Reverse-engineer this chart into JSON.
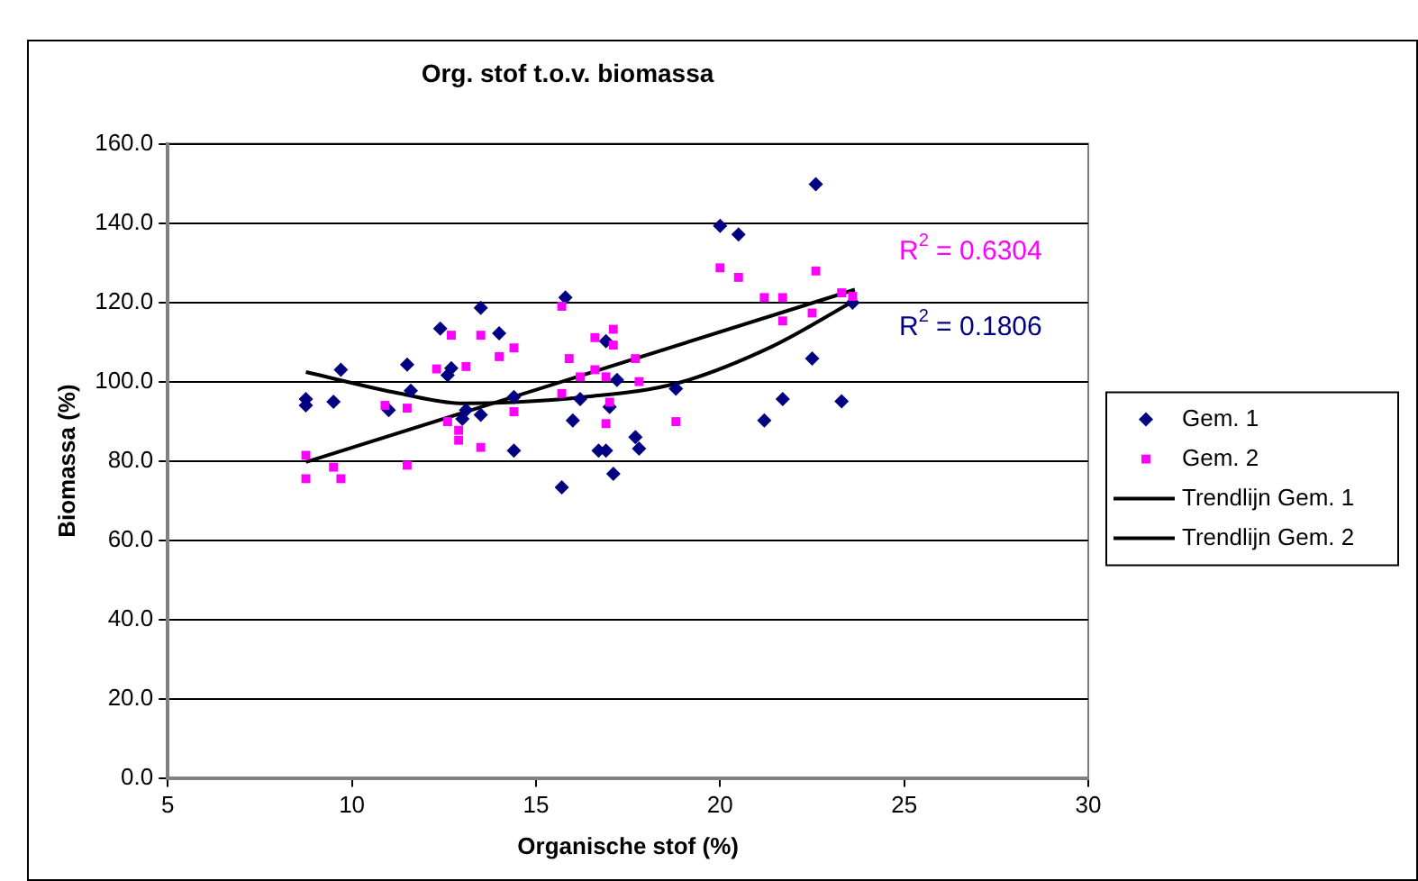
{
  "chart_data": {
    "type": "scatter",
    "title": "Org. stof t.o.v. biomassa",
    "xlabel": "Organische stof (%)",
    "ylabel": "Biomassa (%)",
    "xlim": [
      5,
      30
    ],
    "xticks": [
      5,
      10,
      15,
      20,
      25,
      30
    ],
    "ylim": [
      0,
      160
    ],
    "yticks": [
      {
        "value": 0,
        "label": "0.0"
      },
      {
        "value": 20,
        "label": "20.0"
      },
      {
        "value": 40,
        "label": "40.0"
      },
      {
        "value": 60,
        "label": "60.0"
      },
      {
        "value": 80,
        "label": "80.0"
      },
      {
        "value": 100,
        "label": "100.0"
      },
      {
        "value": 120,
        "label": "120.0"
      },
      {
        "value": 140,
        "label": "140.0"
      },
      {
        "value": 160,
        "label": "160.0"
      }
    ],
    "grid": "y",
    "legend": "right",
    "series": [
      {
        "name": "Gem. 1",
        "color": "#000080",
        "marker": "diamond",
        "x": [
          8.75,
          8.75,
          9.5,
          9.7,
          11.5,
          11.6,
          11.0,
          12.4,
          12.7,
          12.6,
          13.5,
          14.0,
          13.5,
          13.0,
          13.1,
          14.4,
          14.4,
          15.8,
          15.7,
          16.0,
          16.2,
          16.7,
          16.9,
          16.9,
          17.0,
          17.2,
          17.1,
          17.7,
          17.8,
          18.8,
          20.0,
          20.5,
          21.2,
          21.7,
          22.5,
          23.3,
          23.6,
          22.6
        ],
        "values": [
          95.6,
          94.0,
          94.9,
          103,
          104.3,
          97.7,
          92.8,
          113.4,
          103.4,
          101.6,
          118.6,
          112.2,
          91.6,
          90.6,
          92.8,
          96.1,
          82.6,
          121.2,
          73.3,
          90.2,
          95.6,
          82.6,
          82.6,
          110.2,
          93.6,
          100.4,
          76.7,
          86,
          83.1,
          98.2,
          139.3,
          137.1,
          90.2,
          95.6,
          105.8,
          95.0,
          119.9,
          149.8
        ]
      },
      {
        "name": "Gem. 2",
        "color": "#ff00ff",
        "marker": "square",
        "x": [
          8.75,
          8.75,
          9.5,
          9.7,
          11.5,
          10.9,
          11.5,
          12.3,
          12.7,
          13.1,
          13.5,
          14.0,
          14.4,
          14.4,
          12.6,
          12.9,
          12.9,
          13.5,
          15.7,
          15.9,
          16.2,
          15.7,
          16.6,
          16.6,
          16.9,
          17.1,
          17.1,
          17.0,
          16.9,
          17.7,
          17.8,
          18.8,
          20.0,
          20.5,
          21.2,
          21.7,
          21.7,
          22.5,
          22.6,
          23.3,
          23.6
        ],
        "values": [
          81.4,
          75.5,
          78.4,
          75.5,
          78.9,
          94.0,
          93.3,
          103.2,
          111.7,
          103.8,
          111.7,
          106.3,
          108.5,
          92.4,
          89.9,
          87.7,
          85.2,
          83.4,
          119.0,
          105.8,
          101.2,
          97.0,
          111.1,
          103.0,
          101.2,
          113.2,
          109.2,
          94.8,
          89.4,
          105.8,
          100.0,
          89.9,
          128.7,
          126.3,
          121.2,
          121.2,
          115.3,
          117.3,
          127.9,
          122.4,
          121.5
        ]
      },
      {
        "name": "Trendlijn Gem. 1",
        "type": "line",
        "color": "#000000",
        "marker": "none",
        "x": [
          8.75,
          11.3,
          13.0,
          14.4,
          16.3,
          18.8,
          21.4,
          23.7
        ],
        "values": [
          102.4,
          97.0,
          94.5,
          94.8,
          96.1,
          99.5,
          108.8,
          120.7
        ]
      },
      {
        "name": "Trendlijn Gem. 2",
        "type": "line",
        "color": "#000000",
        "marker": "none",
        "x": [
          8.75,
          23.66
        ],
        "values": [
          79.7,
          123.2
        ]
      }
    ],
    "annotations": [
      "R$^{2}$ = 0.6304",
      "R$^{2}$ = 0.1806"
    ]
  }
}
